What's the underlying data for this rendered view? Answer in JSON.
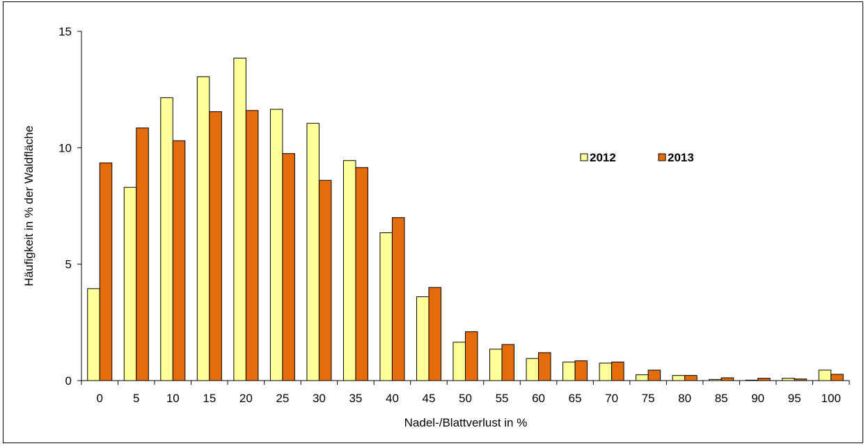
{
  "chart_data": {
    "type": "bar",
    "title": "",
    "xlabel": "Nadel-/Blattverlust in %",
    "ylabel": "Häufigkeit in % der Waldfläche",
    "ylim": [
      0,
      15
    ],
    "yticks": [
      0,
      5,
      10,
      15
    ],
    "categories": [
      "0",
      "5",
      "10",
      "15",
      "20",
      "25",
      "30",
      "35",
      "40",
      "45",
      "50",
      "55",
      "60",
      "65",
      "70",
      "75",
      "80",
      "85",
      "90",
      "95",
      "100"
    ],
    "series": [
      {
        "name": "2012",
        "color": "#ffff99",
        "values": [
          3.95,
          8.3,
          12.15,
          13.05,
          13.85,
          11.65,
          11.05,
          9.45,
          6.35,
          3.6,
          1.65,
          1.35,
          0.95,
          0.8,
          0.75,
          0.25,
          0.22,
          0.05,
          0.02,
          0.1,
          0.45
        ]
      },
      {
        "name": "2013",
        "color": "#e46c0a",
        "values": [
          9.35,
          10.85,
          10.3,
          11.55,
          11.6,
          9.75,
          8.6,
          9.15,
          7.0,
          4.0,
          2.1,
          1.55,
          1.2,
          0.85,
          0.8,
          0.45,
          0.22,
          0.12,
          0.1,
          0.07,
          0.27
        ]
      }
    ],
    "grid": false,
    "legend_position": "top-right"
  }
}
